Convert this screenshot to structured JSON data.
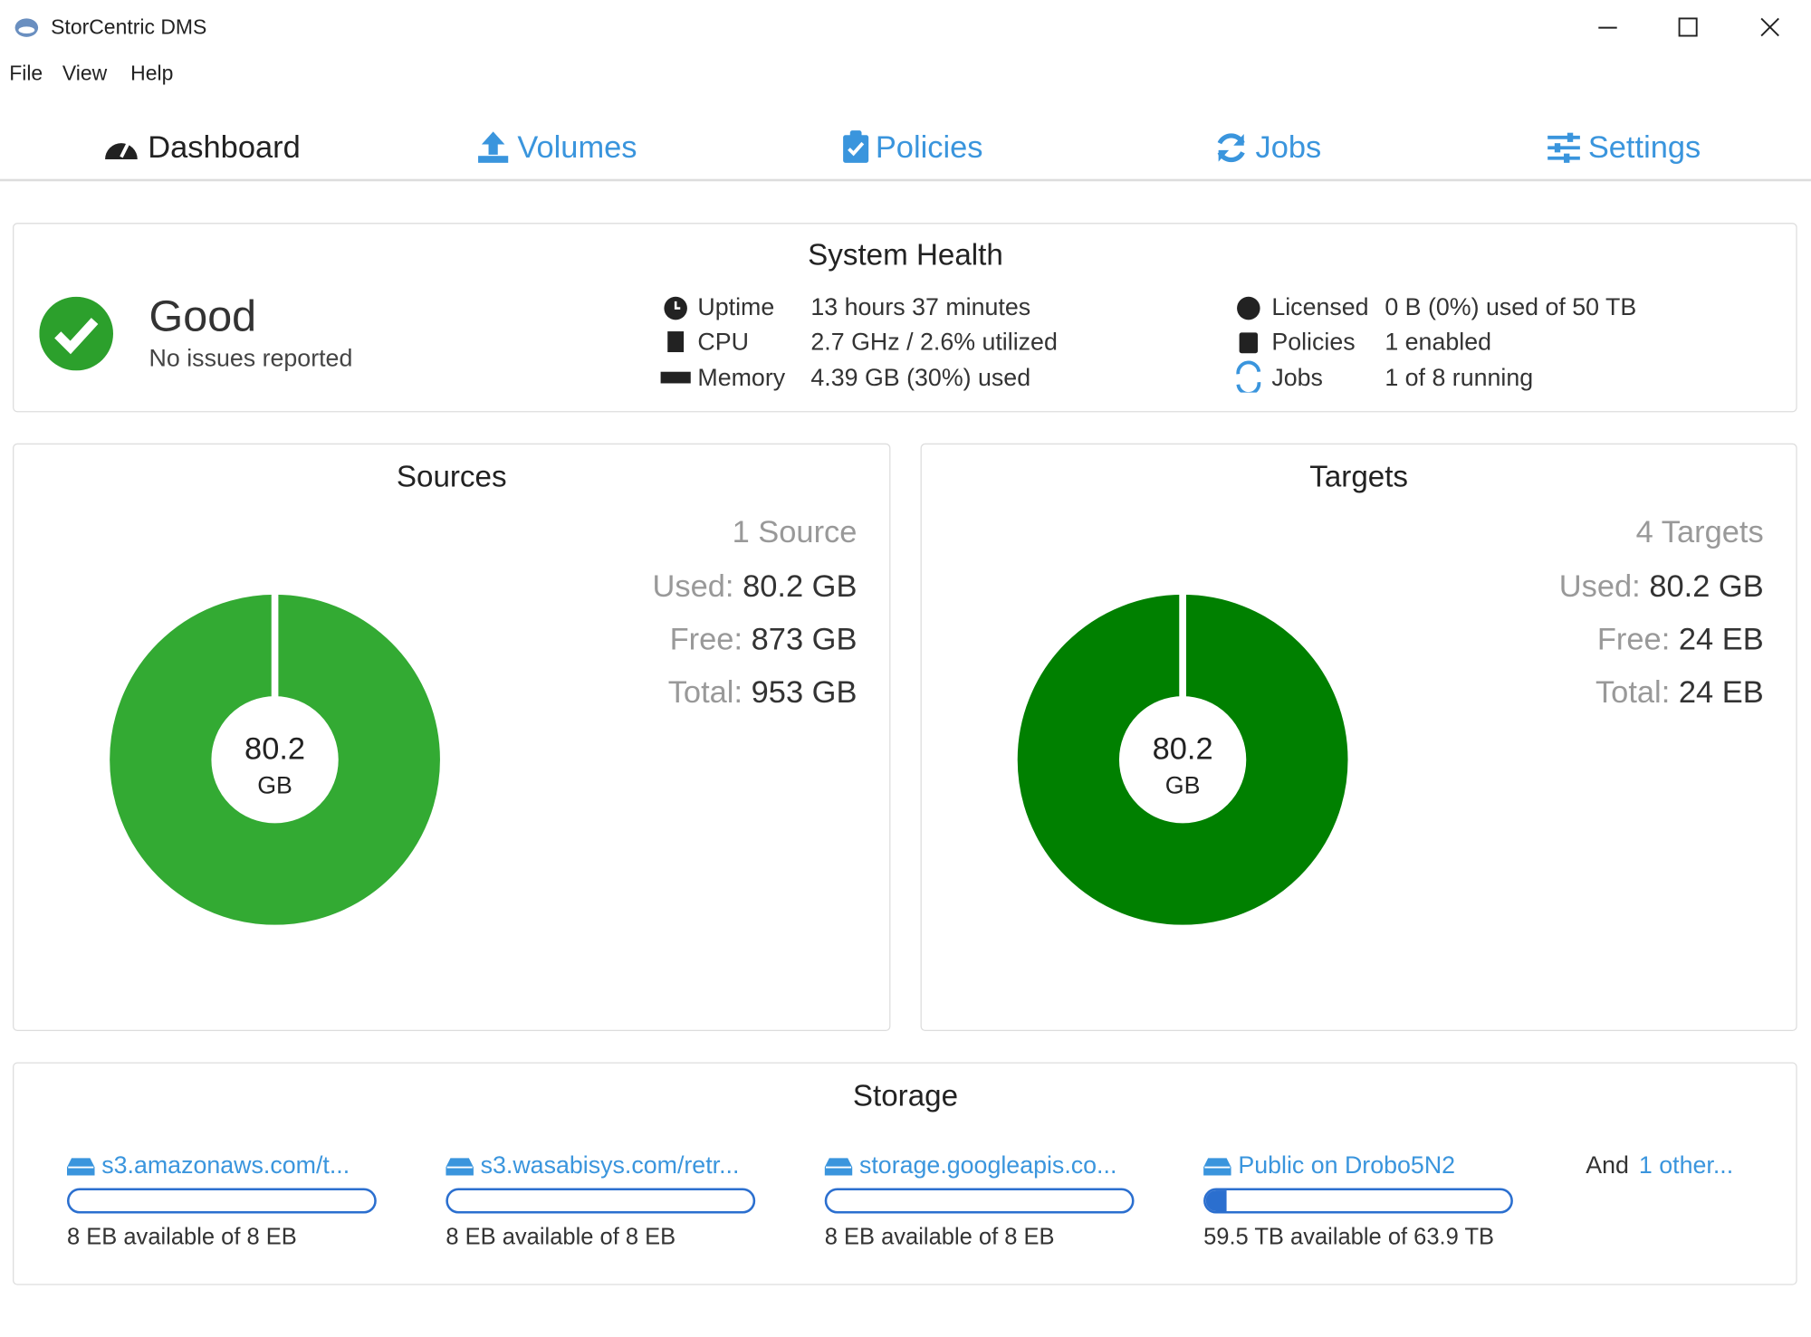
{
  "window": {
    "title": "StorCentric DMS"
  },
  "menu": [
    "File",
    "View",
    "Help"
  ],
  "tabs": [
    "Dashboard",
    "Volumes",
    "Policies",
    "Jobs",
    "Settings"
  ],
  "system_health": {
    "title": "System Health",
    "status": "Good",
    "status_detail": "No issues reported",
    "stats": [
      {
        "label": "Uptime",
        "value": "13 hours 37 minutes"
      },
      {
        "label": "CPU",
        "value": "2.7 GHz / 2.6% utilized"
      },
      {
        "label": "Memory",
        "value": "4.39 GB (30%) used"
      }
    ],
    "stats2": [
      {
        "label": "Licensed",
        "value": "0 B (0%) used of 50 TB"
      },
      {
        "label": "Policies",
        "value": "1 enabled"
      },
      {
        "label": "Jobs",
        "value": "1 of 8 running"
      }
    ]
  },
  "sources": {
    "title": "Sources",
    "count": "1 Source",
    "used_label": "Used:",
    "used": "80.2 GB",
    "free_label": "Free:",
    "free": "873 GB",
    "total_label": "Total:",
    "total": "953 GB",
    "donut_value": "80.2",
    "donut_unit": "GB"
  },
  "targets": {
    "title": "Targets",
    "count": "4 Targets",
    "used_label": "Used:",
    "used": "80.2 GB",
    "free_label": "Free:",
    "free": "24 EB",
    "total_label": "Total:",
    "total": "24 EB",
    "donut_value": "80.2",
    "donut_unit": "GB"
  },
  "storage": {
    "title": "Storage",
    "items": [
      {
        "name": "s3.amazonaws.com/t...",
        "available": "8 EB available of 8 EB"
      },
      {
        "name": "s3.wasabisys.com/retr...",
        "available": "8 EB available of 8 EB"
      },
      {
        "name": "storage.googleapis.co...",
        "available": "8 EB available of 8 EB"
      },
      {
        "name": "Public on Drobo5N2",
        "available": "59.5 TB available of 63.9 TB"
      }
    ],
    "more_prefix": "And",
    "more_link": "1 other..."
  }
}
